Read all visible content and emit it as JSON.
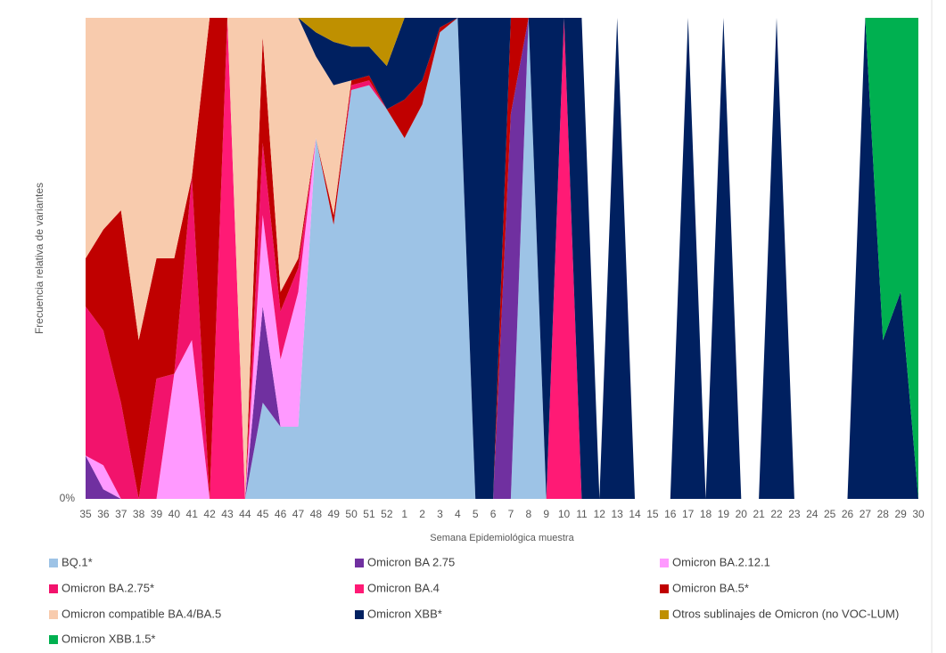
{
  "chart_data": {
    "type": "stacked-area",
    "x_label": "Semana Epidemiológica muestra",
    "y_label": "Frecuencia relativa de variantes",
    "ylim": [
      0,
      100
    ],
    "yticks": [
      {
        "value": 0,
        "label": "0%"
      }
    ],
    "categories": [
      "35",
      "36",
      "37",
      "38",
      "39",
      "40",
      "41",
      "42",
      "43",
      "44",
      "45",
      "46",
      "47",
      "48",
      "49",
      "50",
      "51",
      "52",
      "1",
      "2",
      "3",
      "4",
      "5",
      "6",
      "7",
      "8",
      "9",
      "10",
      "11",
      "12",
      "13",
      "14",
      "15",
      "16",
      "17",
      "18",
      "19",
      "20",
      "21",
      "22",
      "23",
      "24",
      "25",
      "26",
      "27",
      "28",
      "29",
      "30"
    ],
    "series": [
      {
        "name": "BQ.1*",
        "color": "#9dc3e6",
        "values": [
          0,
          0,
          0,
          0,
          0,
          0,
          0,
          0,
          0,
          0,
          20,
          15,
          15,
          75,
          57,
          85,
          86,
          81,
          75,
          82,
          97,
          100,
          0,
          0,
          0,
          100,
          0,
          0,
          0,
          0,
          0,
          0,
          0,
          0,
          0,
          0,
          0,
          0,
          0,
          0,
          0,
          0,
          0,
          0,
          0,
          0,
          0,
          0
        ]
      },
      {
        "name": "Omicron BA 2.75",
        "color": "#7030a0",
        "values": [
          9,
          2,
          0,
          0,
          0,
          0,
          0,
          0,
          0,
          0,
          20,
          0,
          0,
          0,
          0,
          0,
          0,
          0,
          0,
          0,
          0,
          0,
          0,
          0,
          80,
          0,
          0,
          0,
          0,
          0,
          0,
          0,
          0,
          0,
          0,
          0,
          0,
          0,
          0,
          0,
          0,
          0,
          0,
          0,
          0,
          0,
          0,
          0
        ]
      },
      {
        "name": "Omicron BA.2.12.1",
        "color": "#ff99ff",
        "values": [
          0,
          5,
          0,
          0,
          0,
          26,
          33,
          0,
          0,
          0,
          19,
          14,
          28,
          0,
          0,
          0,
          0,
          0,
          0,
          0,
          0,
          0,
          0,
          0,
          0,
          0,
          0,
          0,
          0,
          0,
          0,
          0,
          0,
          0,
          0,
          0,
          0,
          0,
          0,
          0,
          0,
          0,
          0,
          0,
          0,
          0,
          0,
          0
        ]
      },
      {
        "name": "Omicron BA.2.75*",
        "color": "#f2136c",
        "values": [
          31,
          28,
          20,
          0,
          25,
          0,
          34,
          0,
          0,
          0,
          15,
          10,
          5,
          0,
          0,
          1,
          1,
          0,
          0,
          0,
          0,
          0,
          0,
          0,
          0,
          0,
          0,
          0,
          0,
          0,
          0,
          0,
          0,
          0,
          0,
          0,
          0,
          0,
          0,
          0,
          0,
          0,
          0,
          0,
          0,
          0,
          0,
          0
        ]
      },
      {
        "name": "Omicron BA.4",
        "color": "#ff1a75",
        "values": [
          0,
          0,
          0,
          0,
          0,
          0,
          0,
          0,
          100,
          0,
          0,
          0,
          0,
          0,
          0,
          0,
          0,
          0,
          0,
          0,
          0,
          0,
          0,
          0,
          0,
          0,
          0,
          100,
          0,
          0,
          0,
          0,
          0,
          0,
          0,
          0,
          0,
          0,
          0,
          0,
          0,
          0,
          0,
          0,
          0,
          0,
          0,
          0
        ]
      },
      {
        "name": "Omicron BA.5*",
        "color": "#c00000",
        "values": [
          10,
          21,
          40,
          33,
          25,
          24,
          0,
          100,
          0,
          0,
          22,
          4,
          2,
          0,
          2,
          1,
          1,
          0,
          8,
          5,
          1,
          0,
          0,
          0,
          20,
          0,
          0,
          0,
          0,
          0,
          0,
          0,
          0,
          0,
          0,
          0,
          0,
          0,
          0,
          0,
          0,
          0,
          0,
          0,
          0,
          0,
          0,
          0
        ]
      },
      {
        "name": "Omicron compatible BA.4/BA.5",
        "color": "#f8cbad",
        "values": [
          50,
          44,
          40,
          67,
          50,
          50,
          33,
          0,
          0,
          100,
          4,
          57,
          50,
          17,
          27,
          0,
          0,
          0,
          0,
          0,
          0,
          0,
          0,
          0,
          0,
          0,
          0,
          0,
          0,
          0,
          0,
          0,
          0,
          0,
          0,
          0,
          0,
          0,
          0,
          0,
          0,
          0,
          0,
          0,
          0,
          0,
          0,
          0
        ]
      },
      {
        "name": "Omicron XBB*",
        "color": "#002060",
        "values": [
          0,
          0,
          0,
          0,
          0,
          0,
          0,
          0,
          0,
          0,
          0,
          0,
          0,
          5,
          9,
          7,
          6,
          9,
          17,
          13,
          2,
          0,
          100,
          100,
          0,
          0,
          100,
          0,
          100,
          0,
          100,
          0,
          0,
          0,
          100,
          0,
          100,
          0,
          0,
          100,
          0,
          0,
          0,
          0,
          100,
          33,
          43,
          0
        ]
      },
      {
        "name": "Otros sublinajes de Omicron (no VOC-LUM)",
        "color": "#bf9000",
        "values": [
          0,
          0,
          0,
          0,
          0,
          0,
          0,
          0,
          0,
          0,
          0,
          0,
          0,
          3,
          5,
          6,
          6,
          10,
          0,
          0,
          0,
          0,
          0,
          0,
          0,
          0,
          0,
          0,
          0,
          0,
          0,
          0,
          0,
          0,
          0,
          0,
          0,
          0,
          0,
          0,
          0,
          0,
          0,
          0,
          0,
          0,
          0,
          0
        ]
      },
      {
        "name": "Omicron XBB.1.5*",
        "color": "#00b050",
        "values": [
          0,
          0,
          0,
          0,
          0,
          0,
          0,
          0,
          0,
          0,
          0,
          0,
          0,
          0,
          0,
          0,
          0,
          0,
          0,
          0,
          0,
          0,
          0,
          0,
          0,
          0,
          0,
          0,
          0,
          0,
          0,
          0,
          0,
          0,
          0,
          0,
          0,
          0,
          0,
          0,
          0,
          0,
          0,
          0,
          0,
          67,
          57,
          100
        ]
      }
    ]
  }
}
